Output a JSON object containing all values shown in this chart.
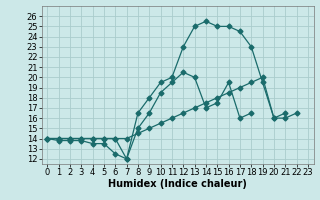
{
  "xlabel": "Humidex (Indice chaleur)",
  "bg_color": "#cce8e8",
  "grid_color": "#aacccc",
  "line_color": "#1a6b6b",
  "xlim": [
    -0.5,
    23.5
  ],
  "ylim": [
    11.5,
    27.0
  ],
  "xticks": [
    0,
    1,
    2,
    3,
    4,
    5,
    6,
    7,
    8,
    9,
    10,
    11,
    12,
    13,
    14,
    15,
    16,
    17,
    18,
    19,
    20,
    21,
    22,
    23
  ],
  "yticks": [
    12,
    13,
    14,
    15,
    16,
    17,
    18,
    19,
    20,
    21,
    22,
    23,
    24,
    25,
    26
  ],
  "series": [
    {
      "x": [
        0,
        1,
        2,
        3,
        4,
        5,
        6,
        7,
        8,
        9,
        10,
        11,
        12,
        13,
        14,
        15,
        16,
        17,
        18,
        19,
        20,
        21,
        22
      ],
      "y": [
        14,
        14,
        14,
        14,
        14,
        14,
        14,
        12,
        16.5,
        18,
        19.5,
        20,
        23,
        25,
        25.5,
        25,
        25,
        24.5,
        23,
        19.5,
        16,
        16,
        16.5
      ]
    },
    {
      "x": [
        0,
        1,
        2,
        3,
        4,
        5,
        6,
        7,
        8,
        9,
        10,
        11,
        12,
        13,
        14,
        15,
        16,
        17,
        18,
        19,
        20,
        21,
        22
      ],
      "y": [
        14,
        13.8,
        13.8,
        13.8,
        13.5,
        13.5,
        12.5,
        12,
        15,
        16.5,
        18.5,
        19.5,
        20.5,
        20,
        17,
        17.5,
        19.5,
        16,
        16.5,
        null,
        null,
        null,
        null
      ]
    },
    {
      "x": [
        0,
        1,
        2,
        3,
        4,
        5,
        6,
        7,
        8,
        9,
        10,
        11,
        12,
        13,
        14,
        15,
        16,
        17,
        18,
        19,
        20,
        21,
        22
      ],
      "y": [
        14,
        14,
        14,
        14,
        14,
        14,
        14,
        14,
        14.5,
        15,
        15.5,
        16,
        16.5,
        17,
        17.5,
        18,
        18.5,
        19,
        19.5,
        20,
        16,
        16.5,
        null
      ]
    }
  ],
  "tick_labelsize": 6,
  "xlabel_fontsize": 7,
  "lw": 0.9,
  "ms": 2.5
}
